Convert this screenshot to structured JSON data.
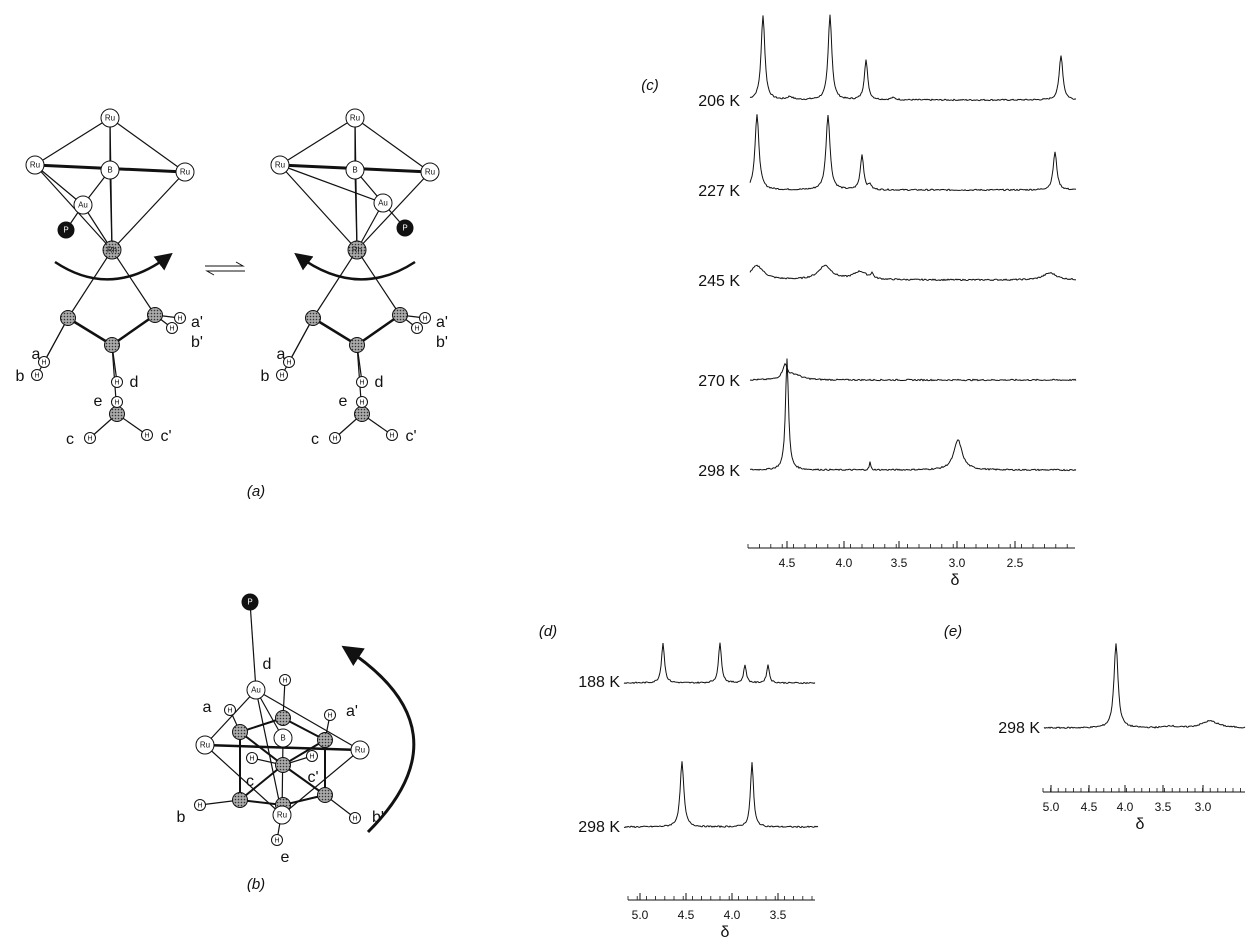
{
  "panel_a": {
    "label": "(a)",
    "left": {
      "atoms": [
        "Ru",
        "Ru",
        "B",
        "Ru",
        "Au",
        "P",
        "Rh",
        "H",
        "H",
        "H",
        "H",
        "H",
        "H",
        "H",
        "H"
      ],
      "letters": [
        "a",
        "b",
        "a'",
        "b'",
        "d",
        "e",
        "c",
        "c'"
      ]
    },
    "right": {
      "atoms": [
        "Ru",
        "Ru",
        "B",
        "Ru",
        "Au",
        "P",
        "Rh",
        "H",
        "H",
        "H",
        "H",
        "H",
        "H",
        "H",
        "H"
      ],
      "letters": [
        "a",
        "b",
        "a'",
        "b'",
        "d",
        "e",
        "c",
        "c'"
      ]
    }
  },
  "panel_b": {
    "label": "(b)",
    "atoms": [
      "P",
      "Au",
      "Ru",
      "B",
      "Ru",
      "Ru",
      "H",
      "H",
      "H",
      "H",
      "H",
      "H",
      "H",
      "H"
    ],
    "letters": [
      "d",
      "a",
      "a'",
      "c",
      "c'",
      "b",
      "b'",
      "e"
    ]
  },
  "panel_c": {
    "label": "(c)",
    "temperatures": [
      "206 K",
      "227 K",
      "245 K",
      "270 K",
      "298 K"
    ],
    "axis": {
      "ticks": [
        "4.5",
        "4.0",
        "3.5",
        "3.0",
        "2.5"
      ],
      "label": "δ"
    }
  },
  "panel_d": {
    "label": "(d)",
    "temperatures": [
      "188 K",
      "298 K"
    ],
    "axis": {
      "ticks": [
        "5.0",
        "4.5",
        "4.0",
        "3.5"
      ],
      "label": "δ"
    }
  },
  "panel_e": {
    "label": "(e)",
    "temperatures": [
      "298 K"
    ],
    "axis": {
      "ticks": [
        "5.0",
        "4.5",
        "4.0",
        "3.5",
        "3.0"
      ],
      "label": "δ"
    }
  }
}
